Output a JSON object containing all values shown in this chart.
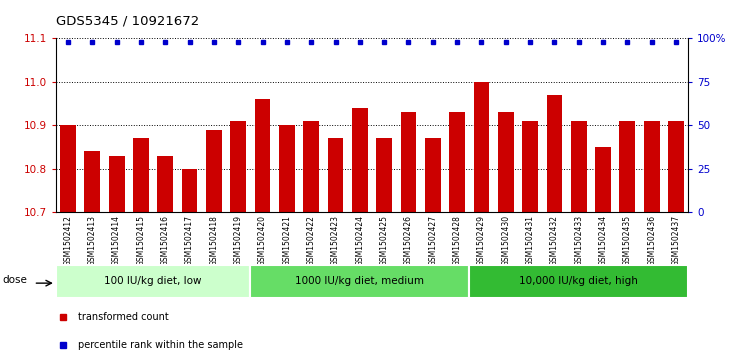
{
  "title": "GDS5345 / 10921672",
  "samples": [
    "GSM1502412",
    "GSM1502413",
    "GSM1502414",
    "GSM1502415",
    "GSM1502416",
    "GSM1502417",
    "GSM1502418",
    "GSM1502419",
    "GSM1502420",
    "GSM1502421",
    "GSM1502422",
    "GSM1502423",
    "GSM1502424",
    "GSM1502425",
    "GSM1502426",
    "GSM1502427",
    "GSM1502428",
    "GSM1502429",
    "GSM1502430",
    "GSM1502431",
    "GSM1502432",
    "GSM1502433",
    "GSM1502434",
    "GSM1502435",
    "GSM1502436",
    "GSM1502437"
  ],
  "bar_values": [
    10.9,
    10.84,
    10.83,
    10.87,
    10.83,
    10.8,
    10.89,
    10.91,
    10.96,
    10.9,
    10.91,
    10.87,
    10.94,
    10.87,
    10.93,
    10.87,
    10.93,
    11.0,
    10.93,
    10.91,
    10.97,
    10.91,
    10.85,
    10.91,
    10.91,
    10.91
  ],
  "percentile_values": [
    98,
    98,
    98,
    98,
    98,
    98,
    98,
    98,
    98,
    98,
    98,
    98,
    98,
    98,
    98,
    98,
    98,
    98,
    98,
    98,
    98,
    98,
    98,
    98,
    98,
    98
  ],
  "bar_color": "#cc0000",
  "dot_color": "#0000cc",
  "ylim_left": [
    10.7,
    11.1
  ],
  "ylim_right": [
    0,
    100
  ],
  "yticks_left": [
    10.7,
    10.8,
    10.9,
    11.0,
    11.1
  ],
  "yticks_right": [
    0,
    25,
    50,
    75,
    100
  ],
  "ytick_labels_right": [
    "0",
    "25",
    "50",
    "75",
    "100%"
  ],
  "groups": [
    {
      "label": "100 IU/kg diet, low",
      "start": 0,
      "end": 8,
      "color": "#ccffcc"
    },
    {
      "label": "1000 IU/kg diet, medium",
      "start": 8,
      "end": 17,
      "color": "#66dd66"
    },
    {
      "label": "10,000 IU/kg diet, high",
      "start": 17,
      "end": 26,
      "color": "#33bb33"
    }
  ],
  "legend_items": [
    {
      "label": "transformed count",
      "color": "#cc0000"
    },
    {
      "label": "percentile rank within the sample",
      "color": "#0000cc"
    }
  ],
  "dose_label": "dose",
  "tick_area_bg": "#d8d8d8"
}
